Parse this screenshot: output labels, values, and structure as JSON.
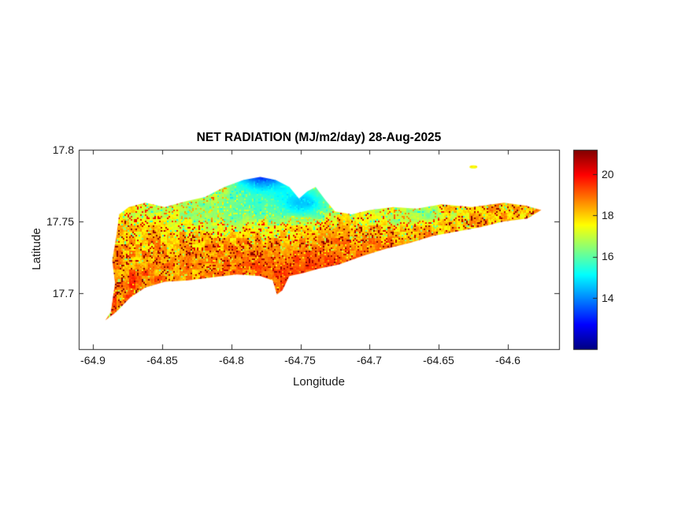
{
  "chart_data": {
    "type": "heatmap",
    "title": "NET RADIATION (MJ/m2/day) 28-Aug-2025",
    "xlabel": "Longitude",
    "ylabel": "Latitude",
    "xlim": [
      -64.9102,
      -64.5631
    ],
    "ylim": [
      17.661,
      17.8
    ],
    "xticks": [
      -64.9,
      -64.85,
      -64.8,
      -64.75,
      -64.7,
      -64.65,
      -64.6
    ],
    "xticklabels": [
      "-64.9",
      "-64.85",
      "-64.8",
      "-64.75",
      "-64.7",
      "-64.65",
      "-64.6"
    ],
    "yticks": [
      17.7,
      17.75,
      17.8
    ],
    "yticklabels": [
      "17.7",
      "17.75",
      "17.8"
    ],
    "grid": false,
    "legend": "none",
    "colorbar": {
      "colormap": "jet",
      "position": "right",
      "vmin": 11.5,
      "vmax": 21.2,
      "ticks": [
        14,
        16,
        18,
        20
      ],
      "ticklabels": [
        "14",
        "16",
        "18",
        "20"
      ]
    },
    "island_outline": [
      [
        -64.891,
        17.681
      ],
      [
        -64.887,
        17.687
      ],
      [
        -64.884,
        17.707
      ],
      [
        -64.886,
        17.723
      ],
      [
        -64.883,
        17.74
      ],
      [
        -64.881,
        17.755
      ],
      [
        -64.874,
        17.76
      ],
      [
        -64.862,
        17.763
      ],
      [
        -64.848,
        17.76
      ],
      [
        -64.833,
        17.764
      ],
      [
        -64.819,
        17.767
      ],
      [
        -64.805,
        17.774
      ],
      [
        -64.791,
        17.779
      ],
      [
        -64.779,
        17.781
      ],
      [
        -64.768,
        17.779
      ],
      [
        -64.758,
        17.774
      ],
      [
        -64.751,
        17.766
      ],
      [
        -64.745,
        17.771
      ],
      [
        -64.739,
        17.774
      ],
      [
        -64.732,
        17.765
      ],
      [
        -64.725,
        17.757
      ],
      [
        -64.713,
        17.755
      ],
      [
        -64.7,
        17.758
      ],
      [
        -64.683,
        17.76
      ],
      [
        -64.666,
        17.759
      ],
      [
        -64.648,
        17.762
      ],
      [
        -64.626,
        17.76
      ],
      [
        -64.603,
        17.763
      ],
      [
        -64.587,
        17.761
      ],
      [
        -64.576,
        17.758
      ],
      [
        -64.586,
        17.752
      ],
      [
        -64.603,
        17.75
      ],
      [
        -64.62,
        17.746
      ],
      [
        -64.637,
        17.743
      ],
      [
        -64.654,
        17.74
      ],
      [
        -64.671,
        17.735
      ],
      [
        -64.688,
        17.731
      ],
      [
        -64.705,
        17.726
      ],
      [
        -64.722,
        17.72
      ],
      [
        -64.737,
        17.717
      ],
      [
        -64.748,
        17.714
      ],
      [
        -64.758,
        17.712
      ],
      [
        -64.763,
        17.702
      ],
      [
        -64.767,
        17.699
      ],
      [
        -64.77,
        17.709
      ],
      [
        -64.779,
        17.712
      ],
      [
        -64.796,
        17.713
      ],
      [
        -64.814,
        17.711
      ],
      [
        -64.831,
        17.709
      ],
      [
        -64.848,
        17.708
      ],
      [
        -64.862,
        17.704
      ],
      [
        -64.873,
        17.697
      ],
      [
        -64.883,
        17.687
      ]
    ],
    "islet": {
      "lon": -64.625,
      "lat": 17.788,
      "value": 19.5
    },
    "field": {
      "base": 18.3,
      "blobs": [
        {
          "lon": -64.778,
          "lat": 17.788,
          "sx": 0.02,
          "sy": 0.013,
          "amp": -5.8
        },
        {
          "lon": -64.8,
          "lat": 17.757,
          "sx": 0.05,
          "sy": 0.009,
          "amp": -2.0
        },
        {
          "lon": -64.745,
          "lat": 17.764,
          "sx": 0.014,
          "sy": 0.009,
          "amp": -2.6
        },
        {
          "lon": -64.668,
          "lat": 17.754,
          "sx": 0.022,
          "sy": 0.0055,
          "amp": -1.7
        },
        {
          "lon": -64.732,
          "lat": 17.712,
          "sx": 0.055,
          "sy": 0.015,
          "amp": 1.1,
          "smooth": true
        },
        {
          "lon": -64.872,
          "lat": 17.7,
          "sx": 0.022,
          "sy": 0.016,
          "amp": 0.7
        }
      ],
      "noise": {
        "coarse_amp": 1.4,
        "fine_amp": 0.9,
        "speckle_hi": 2.3,
        "speckle_lo": 1.5,
        "hi_p": 0.13,
        "lo_p": 0.05
      },
      "seed": 42
    }
  }
}
